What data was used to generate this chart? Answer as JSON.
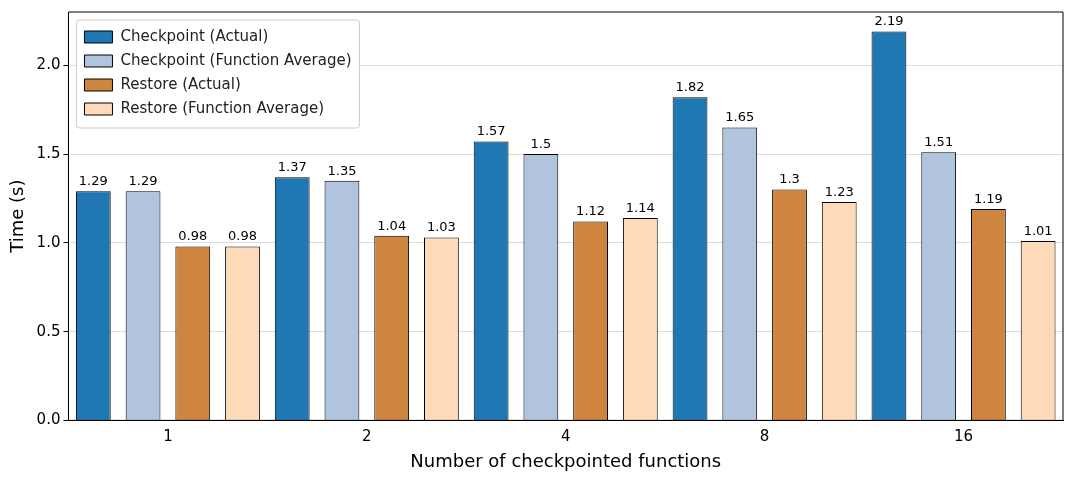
{
  "chart_data": {
    "type": "bar",
    "xlabel": "Number of checkpointed functions",
    "ylabel": "Time (s)",
    "categories": [
      "1",
      "2",
      "4",
      "8",
      "16"
    ],
    "series": [
      {
        "name": "Checkpoint (Actual)",
        "color": "#1f77b4",
        "values": [
          1.29,
          1.37,
          1.57,
          1.82,
          2.19
        ]
      },
      {
        "name": "Checkpoint (Function Average)",
        "color": "#b0c4de",
        "values": [
          1.29,
          1.35,
          1.5,
          1.65,
          1.51
        ]
      },
      {
        "name": "Restore (Actual)",
        "color": "#cd853f",
        "values": [
          0.98,
          1.04,
          1.12,
          1.3,
          1.19
        ]
      },
      {
        "name": "Restore (Function Average)",
        "color": "#ffdab9",
        "values": [
          0.98,
          1.03,
          1.14,
          1.23,
          1.01
        ]
      }
    ],
    "ylim": [
      0,
      2.3
    ],
    "yticks": [
      {
        "value": 0,
        "label": "0.0"
      },
      {
        "value": 0.5,
        "label": "0.5"
      },
      {
        "value": 1,
        "label": "1.0"
      },
      {
        "value": 1.5,
        "label": "1.5"
      },
      {
        "value": 2,
        "label": "2.0"
      }
    ],
    "grid": "y",
    "legend": "top left",
    "data_labels": true
  }
}
